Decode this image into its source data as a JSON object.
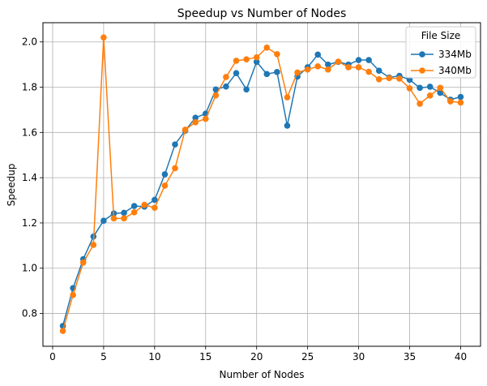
{
  "chart_data": {
    "type": "line",
    "title": "Speedup vs Number of Nodes",
    "xlabel": "Number of Nodes",
    "ylabel": "Speedup",
    "xlim": [
      -0.95,
      41.95
    ],
    "ylim": [
      0.655,
      2.085
    ],
    "xticks": [
      0,
      5,
      10,
      15,
      20,
      25,
      30,
      35,
      40
    ],
    "yticks": [
      0.8,
      1.0,
      1.2,
      1.4,
      1.6,
      1.8,
      2.0
    ],
    "xtick_labels": [
      "0",
      "5",
      "10",
      "15",
      "20",
      "25",
      "30",
      "35",
      "40"
    ],
    "ytick_labels": [
      "0.8",
      "1.0",
      "1.2",
      "1.4",
      "1.6",
      "1.8",
      "2.0"
    ],
    "grid": true,
    "legend": {
      "title": "File Size",
      "position": "top-right"
    },
    "x": [
      1,
      2,
      3,
      4,
      5,
      6,
      7,
      8,
      9,
      10,
      11,
      12,
      13,
      14,
      15,
      16,
      17,
      18,
      19,
      20,
      21,
      22,
      23,
      24,
      25,
      26,
      27,
      28,
      29,
      30,
      31,
      32,
      33,
      34,
      35,
      36,
      37,
      38,
      39,
      40
    ],
    "series": [
      {
        "name": "334Mb",
        "color": "#1f77b4",
        "values": [
          0.745,
          0.912,
          1.04,
          1.14,
          1.21,
          1.242,
          1.245,
          1.275,
          1.272,
          1.302,
          1.415,
          1.547,
          1.608,
          1.665,
          1.683,
          1.79,
          1.803,
          1.862,
          1.79,
          1.912,
          1.858,
          1.867,
          1.63,
          1.847,
          1.888,
          1.944,
          1.9,
          1.912,
          1.9,
          1.92,
          1.92,
          1.873,
          1.843,
          1.85,
          1.833,
          1.797,
          1.802,
          1.775,
          1.745,
          1.757
        ]
      },
      {
        "name": "340Mb",
        "color": "#ff7f0e",
        "values": [
          0.723,
          0.882,
          1.025,
          1.103,
          2.02,
          1.22,
          1.22,
          1.247,
          1.28,
          1.267,
          1.365,
          1.442,
          1.612,
          1.645,
          1.66,
          1.764,
          1.845,
          1.917,
          1.923,
          1.932,
          1.975,
          1.946,
          1.755,
          1.865,
          1.878,
          1.892,
          1.878,
          1.913,
          1.888,
          1.888,
          1.868,
          1.835,
          1.84,
          1.838,
          1.795,
          1.727,
          1.763,
          1.797,
          1.737,
          1.732
        ]
      }
    ]
  }
}
